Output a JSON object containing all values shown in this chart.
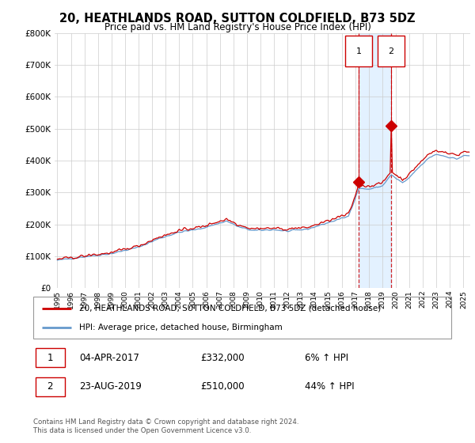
{
  "title": "20, HEATHLANDS ROAD, SUTTON COLDFIELD, B73 5DZ",
  "subtitle": "Price paid vs. HM Land Registry's House Price Index (HPI)",
  "legend_line1": "20, HEATHLANDS ROAD, SUTTON COLDFIELD, B73 5DZ (detached house)",
  "legend_line2": "HPI: Average price, detached house, Birmingham",
  "sale1_date": "04-APR-2017",
  "sale1_price": "£332,000",
  "sale1_hpi": "6% ↑ HPI",
  "sale1_year": 2017.27,
  "sale1_value": 332000,
  "sale2_date": "23-AUG-2019",
  "sale2_price": "£510,000",
  "sale2_hpi": "44% ↑ HPI",
  "sale2_year": 2019.65,
  "sale2_value": 510000,
  "footer": "Contains HM Land Registry data © Crown copyright and database right 2024.\nThis data is licensed under the Open Government Licence v3.0.",
  "red_color": "#cc0000",
  "blue_color": "#6699cc",
  "shade_color": "#ddeeff",
  "bg_color": "#ffffff",
  "grid_color": "#cccccc",
  "xmin": 1994.8,
  "xmax": 2025.5,
  "ymin": 0,
  "ymax": 800000
}
